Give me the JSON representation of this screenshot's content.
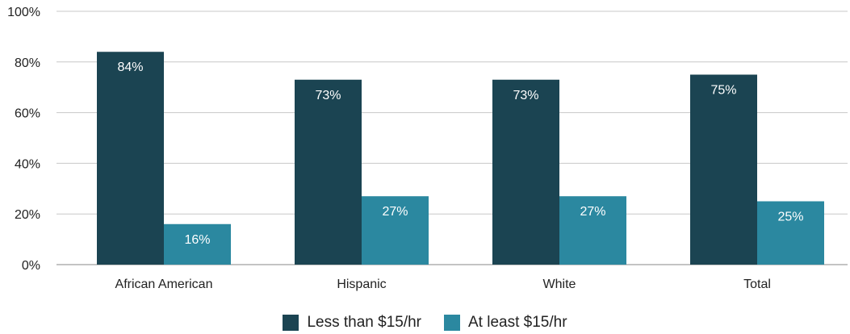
{
  "colors": {
    "less_than_15": "#1b4452",
    "at_least_15": "#2b88a0",
    "grid": "#c8c8c8",
    "axis": "#888888"
  },
  "chart_data": {
    "type": "bar",
    "categories": [
      "African American",
      "Hispanic",
      "White",
      "Total"
    ],
    "series": [
      {
        "name": "Less than $15/hr",
        "values": [
          84,
          73,
          73,
          75
        ],
        "labels": [
          "84%",
          "73%",
          "73%",
          "75%"
        ]
      },
      {
        "name": "At least $15/hr",
        "values": [
          16,
          27,
          27,
          25
        ],
        "labels": [
          "16%",
          "27%",
          "27%",
          "25%"
        ]
      }
    ],
    "ylim": [
      0,
      100
    ],
    "yticks": [
      0,
      20,
      40,
      60,
      80,
      100
    ],
    "ytick_labels": [
      "0%",
      "20%",
      "40%",
      "60%",
      "80%",
      "100%"
    ],
    "grid": true,
    "legend_position": "bottom"
  }
}
